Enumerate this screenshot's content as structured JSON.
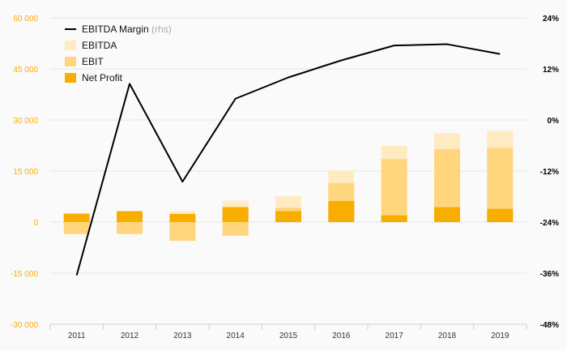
{
  "chart_data": {
    "type": "bar",
    "categories": [
      "2011",
      "2012",
      "2013",
      "2014",
      "2015",
      "2016",
      "2017",
      "2018",
      "2019"
    ],
    "series": [
      {
        "name": "EBITDA",
        "kind": "bar",
        "axis": "left",
        "color": "#FFEBC2",
        "values": [
          1000,
          3300,
          3200,
          6300,
          7600,
          15200,
          22400,
          26100,
          26800
        ]
      },
      {
        "name": "EBIT",
        "kind": "bar",
        "axis": "left",
        "color": "#FFD57E",
        "values": [
          -3500,
          -3500,
          -5500,
          -4000,
          4200,
          11500,
          18500,
          21400,
          21800
        ]
      },
      {
        "name": "Net Profit",
        "kind": "bar",
        "axis": "left",
        "color": "#F8AE00",
        "values": [
          2500,
          3200,
          2400,
          4400,
          3200,
          6200,
          2000,
          4400,
          3900
        ]
      },
      {
        "name": "EBITDA Margin",
        "kind": "line",
        "axis": "right",
        "color": "#000000",
        "values": [
          -36.5,
          8.5,
          -14.5,
          5.0,
          10.0,
          14.0,
          17.5,
          17.8,
          15.5
        ]
      }
    ],
    "legend": {
      "placement": "top-left",
      "entries": [
        {
          "label": "EBITDA Margin",
          "suffix": "(rhs)",
          "kind": "line",
          "color": "#000000"
        },
        {
          "label": "EBITDA",
          "kind": "bar",
          "color": "#FFEBC2"
        },
        {
          "label": "EBIT",
          "kind": "bar",
          "color": "#FFD57E"
        },
        {
          "label": "Net Profit",
          "kind": "bar",
          "color": "#F8AE00"
        }
      ]
    },
    "y_left": {
      "ylim": [
        -30000,
        60000
      ],
      "tick_values": [
        60000,
        45000,
        30000,
        15000,
        0,
        -15000,
        -30000
      ],
      "tick_labels": [
        "60 000",
        "45 000",
        "30 000",
        "15 000",
        "0",
        "-15 000",
        "-30 000"
      ],
      "color": "#F8AE00"
    },
    "y_right": {
      "ylim": [
        -48,
        24
      ],
      "tick_values": [
        24,
        12,
        0,
        -12,
        -24,
        -36,
        -48
      ],
      "tick_labels": [
        "24%",
        "12%",
        "0%",
        "-12%",
        "-24%",
        "-36%",
        "-48%"
      ],
      "color": "#000000"
    },
    "grid": true
  }
}
